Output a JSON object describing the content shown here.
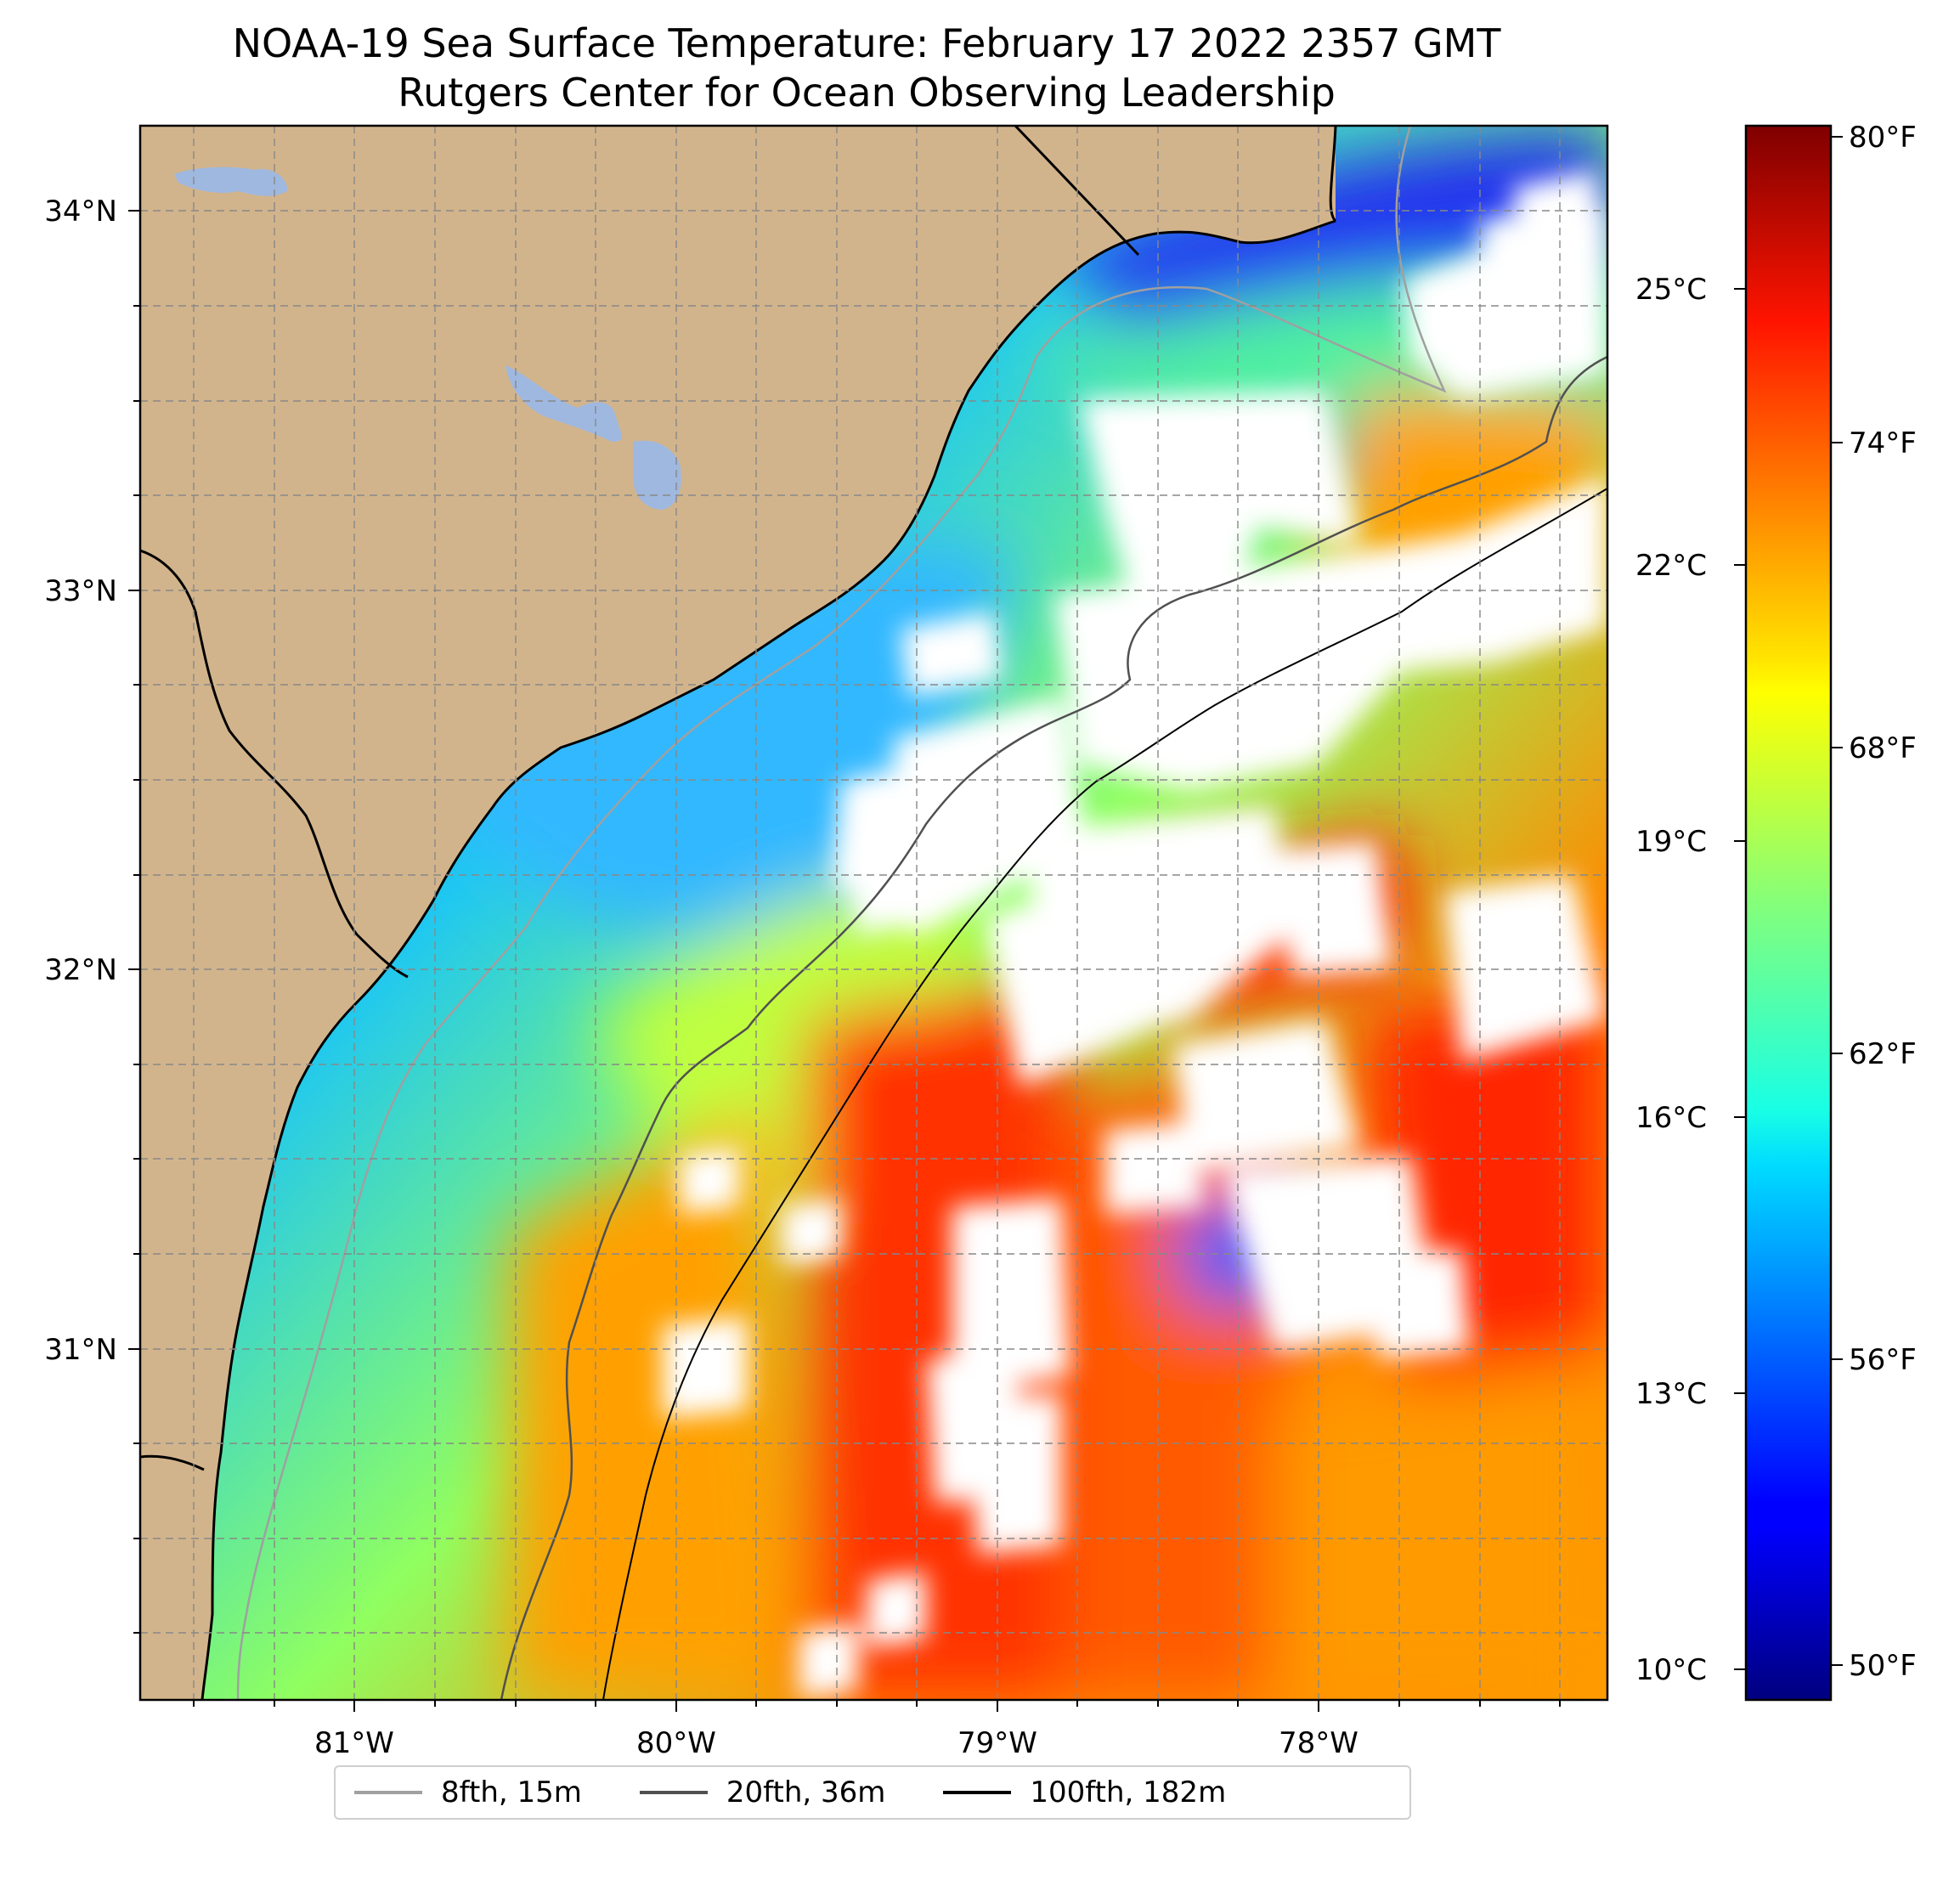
{
  "title": {
    "line1": "NOAA-19 Sea Surface Temperature: February 17 2022 2357 GMT",
    "line2": "Rutgers Center for Ocean Observing Leadership"
  },
  "map": {
    "lon_ticks": [
      "81°W",
      "80°W",
      "79°W",
      "78°W"
    ],
    "lat_ticks": [
      "34°N",
      "33°N",
      "32°N",
      "31°N"
    ],
    "land_color": "#d2b48c",
    "water_color": "#9fb8e0",
    "gridlines": true,
    "projection_extent": {
      "lon": [
        -81.68,
        -77.12
      ],
      "lat": [
        30.08,
        34.22
      ]
    }
  },
  "colorbar": {
    "celsius_ticks": [
      "25°C",
      "22°C",
      "19°C",
      "16°C",
      "13°C",
      "10°C"
    ],
    "fahrenheit_ticks": [
      "80°F",
      "74°F",
      "68°F",
      "62°F",
      "56°F",
      "50°F"
    ],
    "colormap": "jet",
    "range_f": [
      49.5,
      80.5
    ]
  },
  "legend": {
    "placement": "bottom-center",
    "items": [
      {
        "label": "8fth, 15m",
        "color": "#a0a0a0"
      },
      {
        "label": "20fth, 36m",
        "color": "#505050"
      },
      {
        "label": "100fth, 182m",
        "color": "#000000"
      }
    ]
  }
}
